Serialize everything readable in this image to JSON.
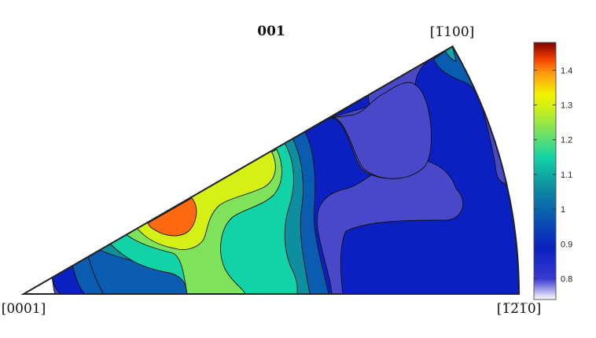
{
  "chart_data": {
    "type": "contour",
    "title": "001",
    "corner_labels": {
      "origin": "[0001]",
      "right": "[š2¯1¯0]",
      "top": "[¯1100]"
    },
    "corner_labels_display": {
      "origin": "[0001]",
      "right": "[1̅2̅1̅0]",
      "top": "[1̅100]"
    },
    "colorbar": {
      "min": 0.74,
      "max": 1.48,
      "ticks": [
        0.8,
        0.9,
        1,
        1.1,
        1.2,
        1.3,
        1.4
      ],
      "tick_labels": [
        "0.8",
        "0.9",
        "1",
        "1.1",
        "1.2",
        "1.3",
        "1.4"
      ],
      "colormap": "parula-like"
    },
    "contour_levels": [
      0.8,
      0.9,
      1.0,
      1.1,
      1.2,
      1.3,
      1.4
    ],
    "sector_angle_deg": 30,
    "max_value_estimate": 1.42,
    "min_value_estimate": 0.75
  }
}
